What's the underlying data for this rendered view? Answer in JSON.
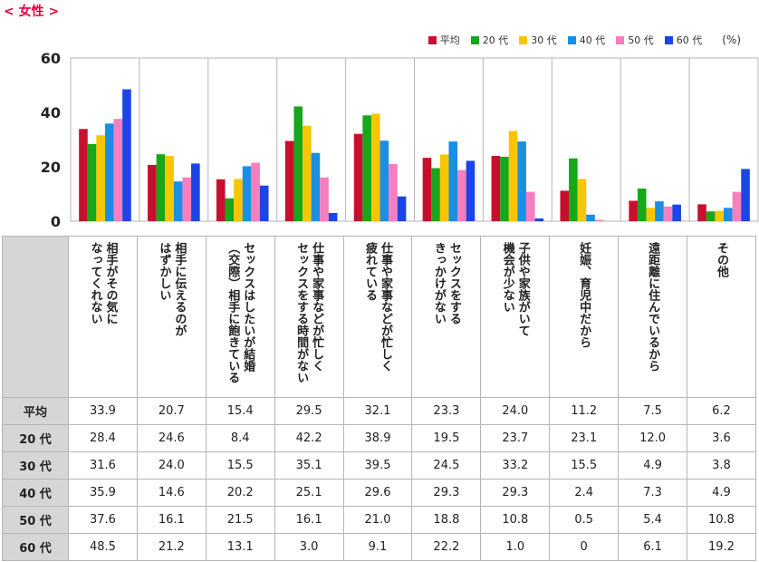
{
  "section_title": "< 女性 >",
  "legend_unit": "(%)",
  "colors": [
    "#c8102e",
    "#18a61b",
    "#f7c600",
    "#1a8fe3",
    "#f57fc0",
    "#1b45e6"
  ],
  "chart_data": {
    "type": "bar",
    "categories": [
      "相手がその気に\nなってくれない",
      "相手に伝えるのが\nはずかしい",
      "セックスはしたいが結婚\n（交際）相手に飽きている",
      "仕事や家事などが忙しく\nセックスをする時間がない",
      "仕事や家事などが忙しく\n疲れている",
      "セックスをする\nきっかけがない",
      "子供や家族がいて\n機会が少ない",
      "妊娠、育児中だから",
      "遠距離に住んでいるから",
      "その他"
    ],
    "series": [
      {
        "name": "平均",
        "values": [
          33.9,
          20.7,
          15.4,
          29.5,
          32.1,
          23.3,
          24.0,
          11.2,
          7.5,
          6.2
        ]
      },
      {
        "name": "20代",
        "values": [
          28.4,
          24.6,
          8.4,
          42.2,
          38.9,
          19.5,
          23.7,
          23.1,
          12.0,
          3.6
        ]
      },
      {
        "name": "30代",
        "values": [
          31.6,
          24.0,
          15.5,
          35.1,
          39.5,
          24.5,
          33.2,
          15.5,
          4.9,
          3.8
        ]
      },
      {
        "name": "40代",
        "values": [
          35.9,
          14.6,
          20.2,
          25.1,
          29.6,
          29.3,
          29.3,
          2.4,
          7.3,
          4.9
        ]
      },
      {
        "name": "50代",
        "values": [
          37.6,
          16.1,
          21.5,
          16.1,
          21.0,
          18.8,
          10.8,
          0.5,
          5.4,
          10.8
        ]
      },
      {
        "name": "60代",
        "values": [
          48.5,
          21.2,
          13.1,
          3.0,
          9.1,
          22.2,
          1.0,
          0,
          6.1,
          19.2
        ]
      }
    ],
    "legend_labels": [
      "平均",
      "20 代",
      "30 代",
      "40 代",
      "50 代",
      "60 代"
    ],
    "row_labels": [
      "平均",
      "20 代",
      "30 代",
      "40 代",
      "50 代",
      "60 代"
    ],
    "table_values": [
      [
        "33.9",
        "20.7",
        "15.4",
        "29.5",
        "32.1",
        "23.3",
        "24.0",
        "11.2",
        "7.5",
        "6.2"
      ],
      [
        "28.4",
        "24.6",
        "8.4",
        "42.2",
        "38.9",
        "19.5",
        "23.7",
        "23.1",
        "12.0",
        "3.6"
      ],
      [
        "31.6",
        "24.0",
        "15.5",
        "35.1",
        "39.5",
        "24.5",
        "33.2",
        "15.5",
        "4.9",
        "3.8"
      ],
      [
        "35.9",
        "14.6",
        "20.2",
        "25.1",
        "29.6",
        "29.3",
        "29.3",
        "2.4",
        "7.3",
        "4.9"
      ],
      [
        "37.6",
        "16.1",
        "21.5",
        "16.1",
        "21.0",
        "18.8",
        "10.8",
        "0.5",
        "5.4",
        "10.8"
      ],
      [
        "48.5",
        "21.2",
        "13.1",
        "3.0",
        "9.1",
        "22.2",
        "1.0",
        "0",
        "6.1",
        "19.2"
      ]
    ],
    "ylim": [
      0,
      60
    ],
    "yticks": [
      0,
      20,
      40,
      60
    ],
    "grid": false,
    "legend_position": "top-right"
  }
}
